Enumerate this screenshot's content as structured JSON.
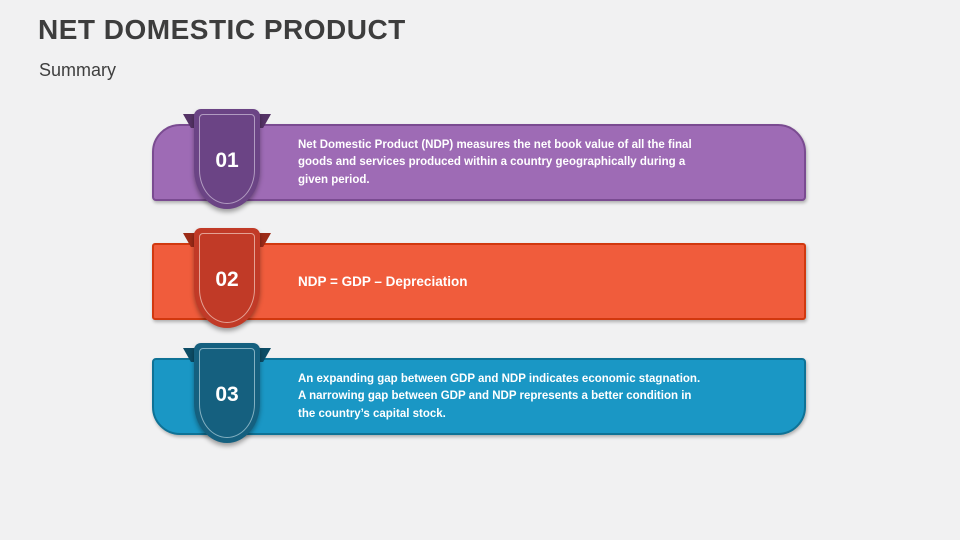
{
  "slide": {
    "title": "NET DOMESTIC PRODUCT",
    "subtitle": "Summary",
    "background_color": "#f1f1f2",
    "title_color": "#3d3d3d"
  },
  "items": [
    {
      "number": "01",
      "text": "Net Domestic Product (NDP) measures the net book value of all the final goods and services produced within a country geographically during a given period.",
      "colors": {
        "bar_fill": "#9e6bb5",
        "bar_border": "#7a4b91",
        "badge_fill": "#6b4485",
        "badge_fold": "#553366",
        "badge_inner_border": "#c3b2cf"
      }
    },
    {
      "number": "02",
      "text": "NDP = GDP – Depreciation",
      "colors": {
        "bar_fill": "#f05c3c",
        "bar_border": "#d1380f",
        "badge_fill": "#c13a27",
        "badge_fold": "#9c2b17",
        "badge_inner_border": "#ecbcb0"
      }
    },
    {
      "number": "03",
      "text": "An expanding gap between GDP and NDP indicates economic stagnation. A narrowing gap between GDP and NDP represents a better condition in the country’s capital stock.",
      "colors": {
        "bar_fill": "#1a97c5",
        "bar_border": "#0e7296",
        "badge_fill": "#15607f",
        "badge_fold": "#0d4d66",
        "badge_inner_border": "#9fc4d2"
      }
    }
  ]
}
